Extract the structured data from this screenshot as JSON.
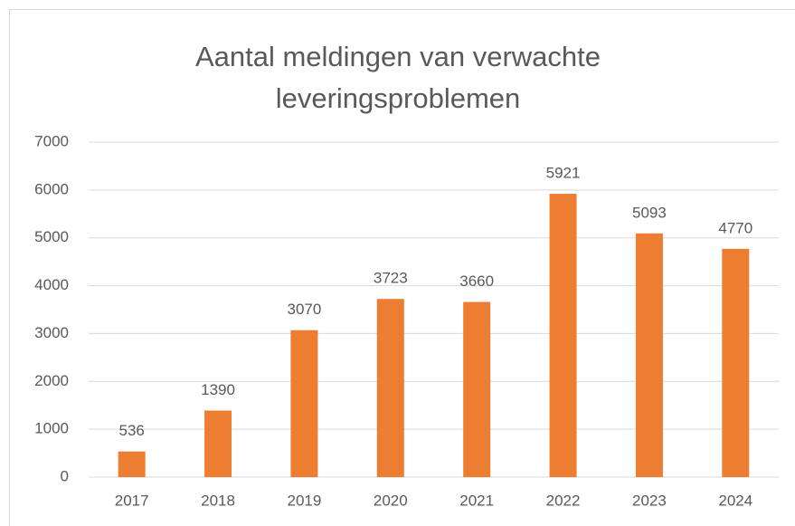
{
  "chart_data": {
    "type": "bar",
    "title": "Aantal meldingen van verwachte leveringsproblemen",
    "categories": [
      "2017",
      "2018",
      "2019",
      "2020",
      "2021",
      "2022",
      "2023",
      "2024"
    ],
    "values": [
      536,
      1390,
      3070,
      3723,
      3660,
      5921,
      5093,
      4770
    ],
    "color": "#ed7d31",
    "ylim": [
      0,
      7000
    ],
    "yticks": [
      0,
      1000,
      2000,
      3000,
      4000,
      5000,
      6000,
      7000
    ],
    "grid": true
  }
}
